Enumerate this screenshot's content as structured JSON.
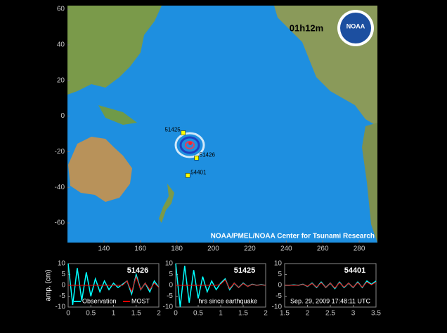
{
  "chart_data": [
    {
      "type": "map",
      "title": "01h12m",
      "credit": "NOAA/PMEL/NOAA Center for Tsunami Research",
      "logo": "NOAA",
      "xlim": [
        120,
        290
      ],
      "ylim": [
        -71,
        62
      ],
      "xticks": [
        140,
        160,
        180,
        200,
        220,
        240,
        260,
        280
      ],
      "yticks": [
        -60,
        -40,
        -20,
        0,
        20,
        40,
        60
      ],
      "stations": [
        {
          "name": "51425",
          "lon": 183.5,
          "lat": -9.4
        },
        {
          "name": "51426",
          "lon": 190.8,
          "lat": -23.5
        },
        {
          "name": "54401",
          "lon": 186,
          "lat": -33.3
        }
      ],
      "epicenter": {
        "lon": 187.3,
        "lat": -15.3
      }
    },
    {
      "type": "line",
      "title": "51426",
      "ylabel": "amp. (cm)",
      "x": [
        0,
        0.1,
        0.2,
        0.3,
        0.4,
        0.5,
        0.6,
        0.7,
        0.8,
        0.9,
        1,
        1.1,
        1.2,
        1.3,
        1.4,
        1.5,
        1.6,
        1.7,
        1.8,
        1.9,
        2
      ],
      "series": [
        {
          "name": "Observation",
          "color": "#00ffff",
          "values": [
            10,
            -9,
            8,
            -7,
            6,
            -5,
            3,
            -3,
            2,
            -2,
            1,
            -1,
            0.5,
            2,
            -4,
            5,
            -2,
            1,
            -3,
            2,
            -1
          ]
        },
        {
          "name": "MOST",
          "color": "#ff0000",
          "values": [
            0,
            0,
            0,
            0,
            0,
            0,
            0,
            0,
            0,
            0,
            0,
            0,
            0,
            2,
            -3,
            4,
            -2,
            1,
            -2,
            1,
            -1
          ]
        }
      ],
      "xlim": [
        0,
        2
      ],
      "ylim": [
        -10,
        10
      ],
      "xticks": [
        0,
        0.5,
        1,
        1.5,
        2
      ],
      "yticks": [
        -10,
        -5,
        0,
        5,
        10
      ]
    },
    {
      "type": "line",
      "title": "51425",
      "xlabel": "hrs since earthquake",
      "x": [
        0,
        0.1,
        0.2,
        0.3,
        0.4,
        0.5,
        0.6,
        0.7,
        0.8,
        0.9,
        1,
        1.1,
        1.2,
        1.3,
        1.4,
        1.5,
        1.6,
        1.7,
        1.8,
        1.9,
        2
      ],
      "series": [
        {
          "color": "#00ffff",
          "values": [
            10,
            -10,
            9,
            -8,
            7,
            -6,
            4,
            -3,
            2,
            -2,
            1,
            3,
            -2,
            1,
            -1,
            1,
            -0.5,
            0.5,
            0,
            0.3,
            0
          ]
        },
        {
          "color": "#ff0000",
          "values": [
            0,
            0,
            0,
            0,
            0,
            0,
            0,
            0,
            0,
            0,
            0.5,
            2.5,
            -1.5,
            1,
            -1,
            0.8,
            -0.5,
            0.4,
            0,
            0.2,
            0
          ]
        }
      ],
      "xlim": [
        0,
        2
      ],
      "ylim": [
        -10,
        10
      ],
      "xticks": [
        0,
        0.5,
        1,
        1.5,
        2
      ],
      "yticks": [
        -10,
        -5,
        0,
        5,
        10
      ]
    },
    {
      "type": "line",
      "title": "54401",
      "annotation": "Sep. 29, 2009 17:48:11 UTC",
      "x": [
        1.5,
        1.6,
        1.7,
        1.8,
        1.9,
        2,
        2.1,
        2.2,
        2.3,
        2.4,
        2.5,
        2.6,
        2.7,
        2.8,
        2.9,
        3,
        3.1,
        3.2,
        3.3,
        3.4,
        3.5
      ],
      "series": [
        {
          "color": "#00ffff",
          "values": [
            0,
            0,
            0.2,
            0,
            0.5,
            -0.5,
            1,
            -1,
            1.5,
            -1,
            1,
            -1.5,
            1.5,
            -1,
            1,
            -1,
            1.5,
            -1,
            2,
            0.5,
            2
          ]
        },
        {
          "color": "#ff0000",
          "values": [
            0,
            0,
            0,
            0,
            0.4,
            -0.4,
            0.8,
            -0.8,
            1.2,
            -1,
            1,
            -1.2,
            1.2,
            -0.8,
            1,
            -0.9,
            1.2,
            -0.8,
            1.5,
            0.2,
            1.5
          ]
        }
      ],
      "xlim": [
        1.5,
        3.5
      ],
      "ylim": [
        -10,
        10
      ],
      "xticks": [
        1.5,
        2,
        2.5,
        3,
        3.5
      ],
      "yticks": [
        -10,
        -5,
        0,
        5,
        10
      ]
    }
  ]
}
